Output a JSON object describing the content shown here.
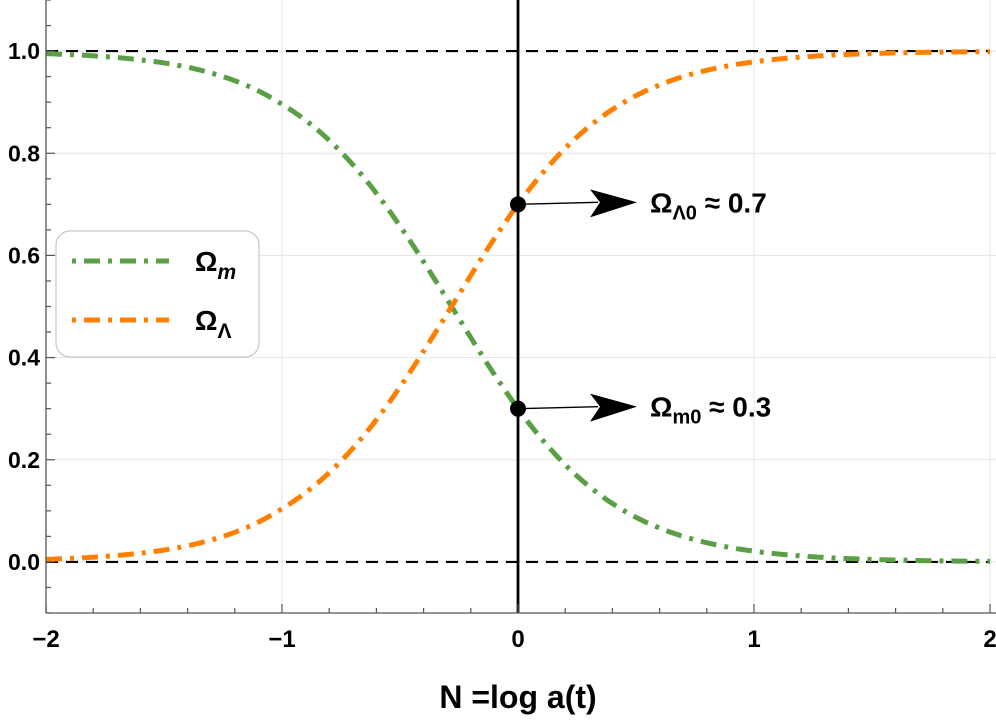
{
  "chart_data": {
    "type": "line",
    "title": "",
    "xlabel": "N =log a(t)",
    "ylabel": "",
    "xlim": [
      -2,
      2
    ],
    "ylim": [
      -0.1,
      1.1
    ],
    "x_ticks": [
      "−2",
      "−1",
      "0",
      "1",
      "2"
    ],
    "y_ticks": [
      "0.0",
      "0.2",
      "0.4",
      "0.6",
      "0.8",
      "1.0"
    ],
    "grid": true,
    "legend_placement": "left",
    "series": [
      {
        "name": "Ω_m",
        "label_main": "Ω",
        "label_sub": "m",
        "color": "#5a9e46",
        "style": "dot-dash",
        "x": [
          -2,
          -1.5,
          -1,
          -0.5,
          -0.25,
          0,
          0.25,
          0.5,
          1,
          1.5,
          2
        ],
        "y": [
          0.995,
          0.9768,
          0.8959,
          0.6576,
          0.4765,
          0.3,
          0.1682,
          0.0873,
          0.021,
          0.0048,
          0.0011
        ]
      },
      {
        "name": "Ω_Λ",
        "label_main": "Ω",
        "label_sub": "Λ",
        "color": "#ff8000",
        "style": "dot-dash",
        "x": [
          -2,
          -1.5,
          -1,
          -0.5,
          -0.25,
          0,
          0.25,
          0.5,
          1,
          1.5,
          2
        ],
        "y": [
          0.005,
          0.0232,
          0.1041,
          0.3424,
          0.5235,
          0.7,
          0.8318,
          0.9127,
          0.979,
          0.9952,
          0.9989
        ]
      }
    ],
    "reference_lines": [
      {
        "orientation": "horizontal",
        "value": 1.0,
        "style": "dashed",
        "color": "#000000"
      },
      {
        "orientation": "horizontal",
        "value": 0.0,
        "style": "dashed",
        "color": "#000000"
      },
      {
        "orientation": "vertical",
        "value": 0,
        "style": "solid",
        "color": "#000000"
      }
    ],
    "annotations": [
      {
        "point": [
          0,
          0.7
        ],
        "main": "Ω",
        "sub": "Λ0",
        "text": "≈ 0.7"
      },
      {
        "point": [
          0,
          0.3
        ],
        "main": "Ω",
        "sub": "m0",
        "text": "≈ 0.3"
      }
    ]
  }
}
